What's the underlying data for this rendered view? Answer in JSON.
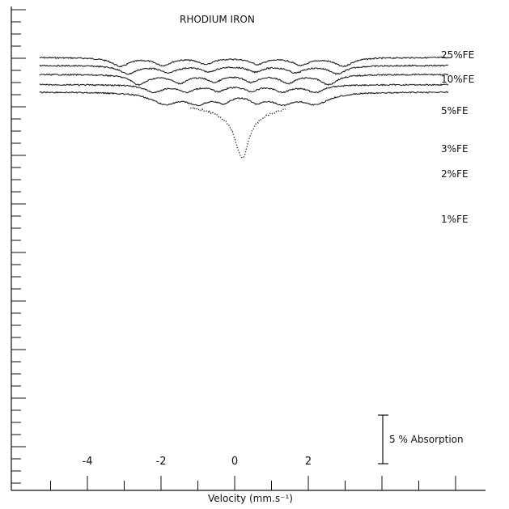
{
  "chart_data": {
    "type": "line",
    "title": "RHODIUM IRON",
    "xlabel": "Velocity",
    "xunit": "(mm.s⁻¹)",
    "x_tick_labels": [
      "-4",
      "-2",
      "0",
      "2"
    ],
    "x_tick_values": [
      -4,
      -2,
      0,
      2
    ],
    "xlim": [
      -5.3,
      5.8
    ],
    "scale_bar_label": "5 % Absorption",
    "scale_bar_value_percent": 5,
    "grid": false,
    "series": [
      {
        "name": "25%FE",
        "baseline_offset": 0,
        "peaks": [
          {
            "v": -3.1,
            "depth": 0.035,
            "w": 0.28
          },
          {
            "v": -1.95,
            "depth": 0.03,
            "w": 0.27
          },
          {
            "v": -0.78,
            "depth": 0.026,
            "w": 0.25
          },
          {
            "v": 0.62,
            "depth": 0.026,
            "w": 0.25
          },
          {
            "v": 1.8,
            "depth": 0.03,
            "w": 0.27
          },
          {
            "v": 2.95,
            "depth": 0.035,
            "w": 0.28
          }
        ]
      },
      {
        "name": "10%FE",
        "baseline_offset": 0.033,
        "peaks": [
          {
            "v": -2.9,
            "depth": 0.033,
            "w": 0.27
          },
          {
            "v": -1.8,
            "depth": 0.028,
            "w": 0.26
          },
          {
            "v": -0.7,
            "depth": 0.024,
            "w": 0.24
          },
          {
            "v": 0.55,
            "depth": 0.024,
            "w": 0.24
          },
          {
            "v": 1.65,
            "depth": 0.028,
            "w": 0.26
          },
          {
            "v": 2.8,
            "depth": 0.033,
            "w": 0.27
          }
        ]
      },
      {
        "name": "5%FE",
        "baseline_offset": 0.07,
        "peaks": [
          {
            "v": -2.6,
            "depth": 0.04,
            "w": 0.27
          },
          {
            "v": -1.5,
            "depth": 0.033,
            "w": 0.25
          },
          {
            "v": -0.55,
            "depth": 0.028,
            "w": 0.23
          },
          {
            "v": 0.45,
            "depth": 0.028,
            "w": 0.23
          },
          {
            "v": 1.45,
            "depth": 0.033,
            "w": 0.25
          },
          {
            "v": 2.55,
            "depth": 0.04,
            "w": 0.27
          }
        ]
      },
      {
        "name": "3%FE",
        "baseline_offset": 0.112,
        "peaks": [
          {
            "v": -2.2,
            "depth": 0.03,
            "w": 0.28
          },
          {
            "v": -1.3,
            "depth": 0.027,
            "w": 0.25
          },
          {
            "v": -0.45,
            "depth": 0.024,
            "w": 0.22
          },
          {
            "v": 0.45,
            "depth": 0.024,
            "w": 0.22
          },
          {
            "v": 1.3,
            "depth": 0.027,
            "w": 0.25
          },
          {
            "v": 2.2,
            "depth": 0.03,
            "w": 0.28
          }
        ]
      },
      {
        "name": "2%FE",
        "baseline_offset": 0.142,
        "peaks": [
          {
            "v": -1.9,
            "depth": 0.045,
            "w": 0.45
          },
          {
            "v": -1.0,
            "depth": 0.04,
            "w": 0.35
          },
          {
            "v": -0.3,
            "depth": 0.033,
            "w": 0.25
          },
          {
            "v": 0.6,
            "depth": 0.033,
            "w": 0.25
          },
          {
            "v": 1.3,
            "depth": 0.04,
            "w": 0.35
          },
          {
            "v": 2.2,
            "depth": 0.045,
            "w": 0.45
          }
        ]
      },
      {
        "name": "1%FE",
        "baseline_offset": 0.19,
        "v_range": [
          -1.2,
          1.4
        ],
        "peaks": [
          {
            "v": 0.2,
            "depth": 0.175,
            "w": 0.22
          },
          {
            "v": 0.2,
            "depth": 0.05,
            "w": 0.9
          }
        ]
      }
    ]
  }
}
